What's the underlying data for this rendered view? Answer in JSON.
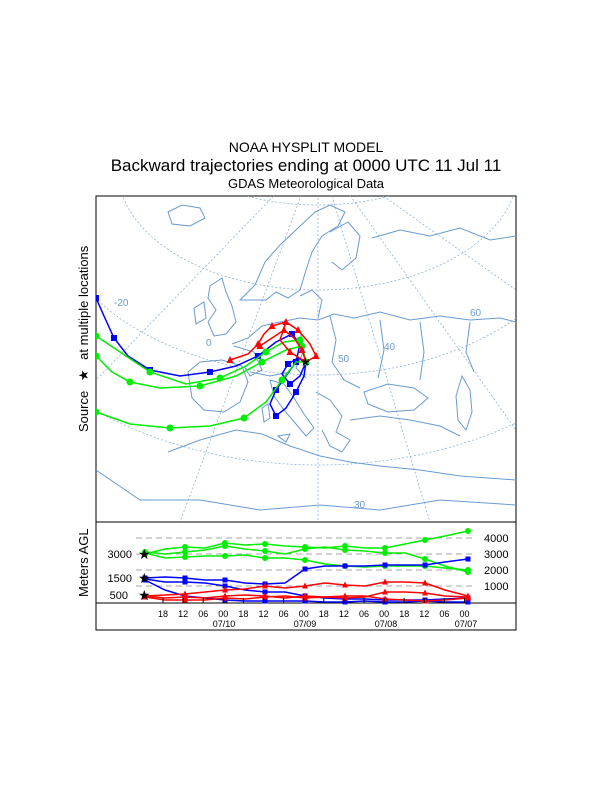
{
  "header": {
    "line1": "NOAA HYSPLIT MODEL",
    "line2": "Backward trajectories ending at 0000 UTC 11 Jul 11",
    "line3": "GDAS Meteorological Data"
  },
  "map": {
    "side_label_prefix": "Source",
    "side_label_suffix": "at multiple locations",
    "source_symbol": "★",
    "lon_labels": [
      "-20",
      "0",
      "40",
      "50",
      "60",
      "30"
    ],
    "colors": {
      "land": "#6a9bd0",
      "grid": "#8fb3d9",
      "level_500": "#ff0000",
      "level_1500": "#0000ff",
      "level_3000": "#00ee00"
    }
  },
  "vertical_panel": {
    "axis_label": "Meters AGL",
    "source_heights": [
      "3000",
      "1500",
      "500"
    ],
    "right_ticks": [
      "4000",
      "3000",
      "2000",
      "1000"
    ],
    "time_ticks": [
      "18",
      "12",
      "06",
      "00",
      "18",
      "12",
      "06",
      "00",
      "18",
      "12",
      "06",
      "00",
      "18",
      "12",
      "06",
      "00"
    ],
    "date_labels": [
      "07/10",
      "07/09",
      "07/08",
      "07/07"
    ]
  },
  "trajectories": [
    {
      "level": "500",
      "color": "#ff0000",
      "marker": "triangle"
    },
    {
      "level": "1500",
      "color": "#0000ff",
      "marker": "square"
    },
    {
      "level": "3000",
      "color": "#00ee00",
      "marker": "circle"
    }
  ]
}
